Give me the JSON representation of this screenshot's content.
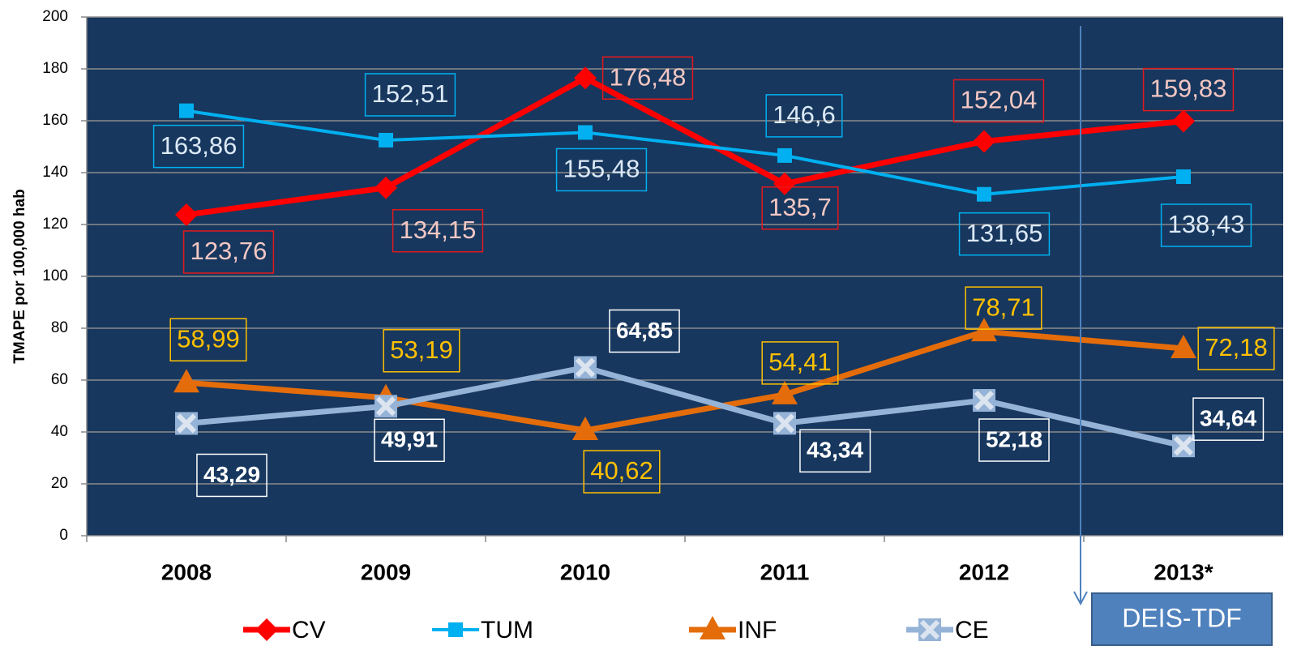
{
  "chart_data": {
    "type": "line",
    "y_axis_label": "TMAPE por 100,000 hab",
    "categories": [
      "2008",
      "2009",
      "2010",
      "2011",
      "2012",
      "2013*"
    ],
    "ylim": [
      0,
      200
    ],
    "yticks": [
      0,
      20,
      40,
      60,
      80,
      100,
      120,
      140,
      160,
      180,
      200
    ],
    "grid": true,
    "background": "#17375e",
    "legend": "bottom",
    "annotation": "DEIS-TDF",
    "series": [
      {
        "name": "CV",
        "color": "#ff0000",
        "marker": "diamond",
        "values": [
          123.76,
          134.15,
          176.48,
          135.7,
          152.04,
          159.83
        ],
        "value_labels": [
          "123,76",
          "134,15",
          "176,48",
          "135,7",
          "152,04",
          "159,83"
        ]
      },
      {
        "name": "TUM",
        "color": "#00b0f0",
        "marker": "square",
        "values": [
          163.86,
          152.51,
          155.48,
          146.6,
          131.65,
          138.43
        ],
        "value_labels": [
          "163,86",
          "152,51",
          "155,48",
          "146,6",
          "131,65",
          "138,43"
        ]
      },
      {
        "name": "INF",
        "color": "#e46c0a",
        "marker": "triangle",
        "values": [
          58.99,
          53.19,
          40.62,
          54.41,
          78.71,
          72.18
        ],
        "value_labels": [
          "58,99",
          "53,19",
          "40,62",
          "54,41",
          "78,71",
          "72,18"
        ]
      },
      {
        "name": "CE",
        "color": "#95b3d7",
        "marker": "x",
        "values": [
          43.29,
          49.91,
          64.85,
          43.34,
          52.18,
          34.64
        ],
        "value_labels": [
          "43,29",
          "49,91",
          "64,85",
          "43,34",
          "52,18",
          "34,64"
        ]
      }
    ]
  }
}
